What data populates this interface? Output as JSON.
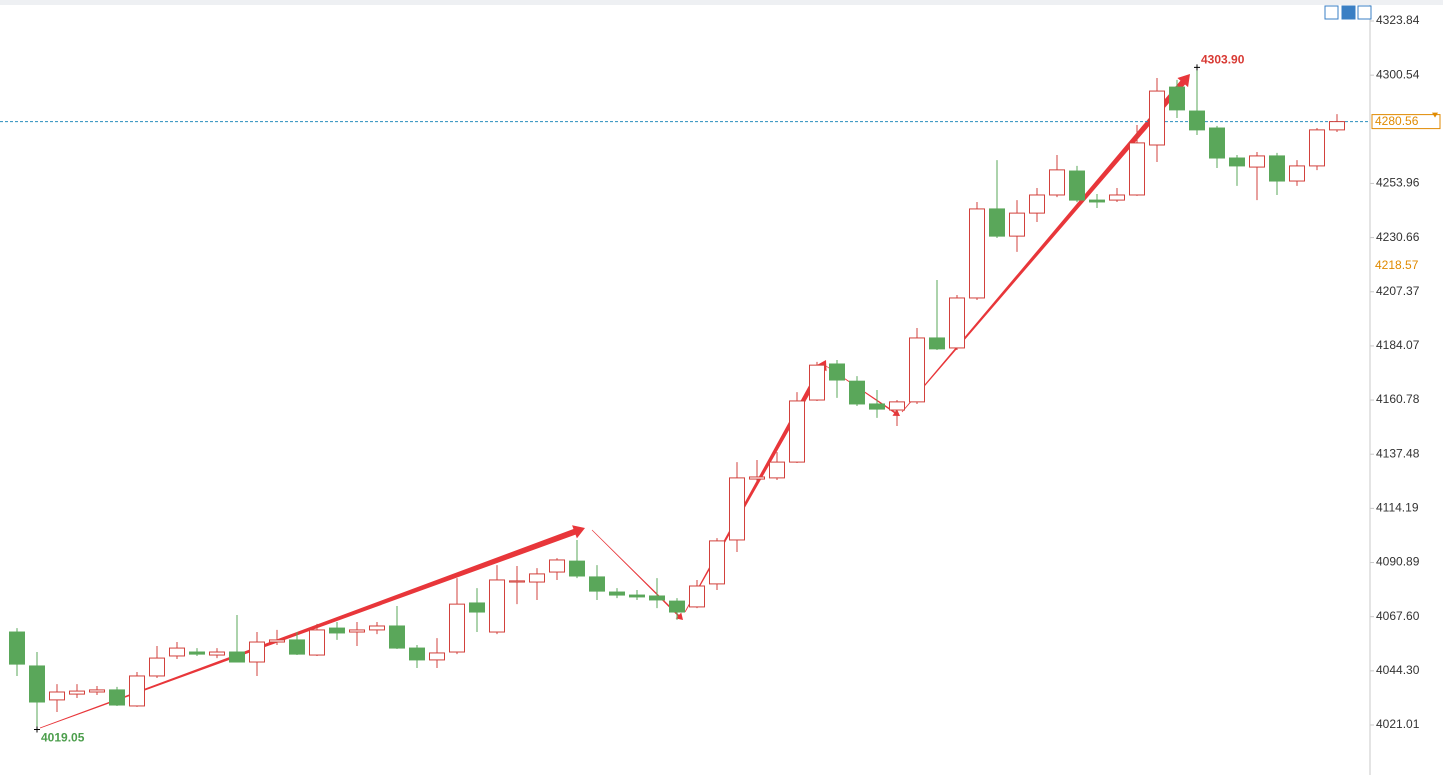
{
  "chart_data": {
    "type": "candlestick",
    "open": [
      4061.0,
      4046.4,
      4031.8,
      4034.3,
      4035.2,
      4036.1,
      4029.2,
      4042.1,
      4050.7,
      4052.4,
      4051.1,
      4052.4,
      4048.1,
      4056.7,
      4057.6,
      4051.1,
      4062.7,
      4061.0,
      4061.9,
      4063.6,
      4054.1,
      4049.0,
      4052.4,
      4073.5,
      4061.0,
      4082.5,
      4082.5,
      4086.8,
      4091.5,
      4084.7,
      4078.2,
      4076.9,
      4076.5,
      4074.3,
      4071.8,
      4081.7,
      4100.6,
      4126.8,
      4127.3,
      4134.1,
      4160.8,
      4176.3,
      4168.9,
      4159.1,
      4156.5,
      4160.0,
      4187.5,
      4183.2,
      4204.7,
      4243.0,
      4231.3,
      4241.2,
      4249.0,
      4259.3,
      4246.8,
      4246.8,
      4249.0,
      4270.5,
      4295.4,
      4285.1,
      4277.8,
      4264.9,
      4261.0,
      4265.8,
      4255.0,
      4261.5,
      4277.0
    ],
    "high": [
      4062.7,
      4052.4,
      4038.6,
      4038.6,
      4037.8,
      4037.4,
      4043.8,
      4055.0,
      4056.7,
      4054.1,
      4054.1,
      4068.3,
      4061.0,
      4061.9,
      4061.0,
      4064.5,
      4065.3,
      4065.3,
      4065.3,
      4072.2,
      4055.4,
      4058.4,
      4084.2,
      4079.9,
      4089.8,
      4089.4,
      4088.5,
      4092.8,
      4100.6,
      4089.8,
      4079.9,
      4079.1,
      4084.2,
      4075.6,
      4083.4,
      4101.4,
      4134.1,
      4135.0,
      4138.4,
      4164.2,
      4177.2,
      4178.0,
      4171.1,
      4165.1,
      4160.8,
      4191.8,
      4212.4,
      4206.0,
      4246.0,
      4264.0,
      4246.8,
      4252.0,
      4266.2,
      4261.5,
      4249.4,
      4252.0,
      4279.1,
      4299.3,
      4298.5,
      4303.9,
      4278.7,
      4266.2,
      4267.5,
      4267.1,
      4264.0,
      4277.8,
      4283.8
    ],
    "low": [
      4042.1,
      4019.05,
      4026.6,
      4032.6,
      4033.9,
      4029.2,
      4028.8,
      4041.2,
      4049.4,
      4050.7,
      4049.8,
      4048.1,
      4042.1,
      4055.4,
      4051.1,
      4050.7,
      4057.6,
      4055.0,
      4060.1,
      4053.7,
      4045.5,
      4045.5,
      4051.5,
      4061.0,
      4060.1,
      4073.0,
      4074.8,
      4083.4,
      4084.2,
      4074.8,
      4075.6,
      4074.8,
      4071.3,
      4066.2,
      4071.3,
      4079.1,
      4095.4,
      4125.5,
      4126.4,
      4133.7,
      4160.4,
      4161.7,
      4158.2,
      4153.1,
      4149.6,
      4159.1,
      4182.3,
      4182.3,
      4203.8,
      4230.5,
      4224.5,
      4237.4,
      4248.1,
      4245.9,
      4243.4,
      4246.0,
      4248.6,
      4263.2,
      4282.1,
      4274.8,
      4260.6,
      4252.9,
      4246.8,
      4249.0,
      4252.9,
      4259.7,
      4276.1
    ],
    "close": [
      4047.2,
      4030.9,
      4035.2,
      4035.6,
      4036.1,
      4029.6,
      4042.1,
      4049.8,
      4054.1,
      4051.5,
      4052.4,
      4048.1,
      4056.7,
      4057.6,
      4051.5,
      4061.9,
      4060.6,
      4061.9,
      4063.6,
      4054.1,
      4049.0,
      4052.0,
      4073.0,
      4069.6,
      4083.4,
      4083.0,
      4086.0,
      4092.0,
      4085.1,
      4078.6,
      4076.9,
      4076.1,
      4074.8,
      4069.6,
      4080.8,
      4100.2,
      4127.3,
      4127.7,
      4134.1,
      4160.4,
      4175.8,
      4169.4,
      4159.1,
      4156.9,
      4160.0,
      4187.5,
      4182.8,
      4204.7,
      4243.0,
      4231.3,
      4241.2,
      4249.0,
      4259.8,
      4246.8,
      4246.0,
      4249.0,
      4271.4,
      4293.7,
      4285.6,
      4277.0,
      4264.9,
      4261.5,
      4265.8,
      4255.0,
      4261.5,
      4277.0,
      4280.56
    ],
    "up_color": "#d2413c",
    "down_color": "#5aa75a",
    "ylim": [
      4003.8,
      4330.72
    ],
    "yticks": [
      4323.84,
      4300.54,
      4253.96,
      4230.66,
      4207.37,
      4184.07,
      4160.78,
      4137.48,
      4114.19,
      4090.89,
      {
        "value": 4067.6,
        "label": "4067.60"
      },
      {
        "value": 4044.3,
        "label": "4044.30"
      },
      4021.01
    ],
    "last_price": 4280.56,
    "reference_price": 4218.57,
    "high_label": "4303.90",
    "low_label": "4019.05"
  }
}
